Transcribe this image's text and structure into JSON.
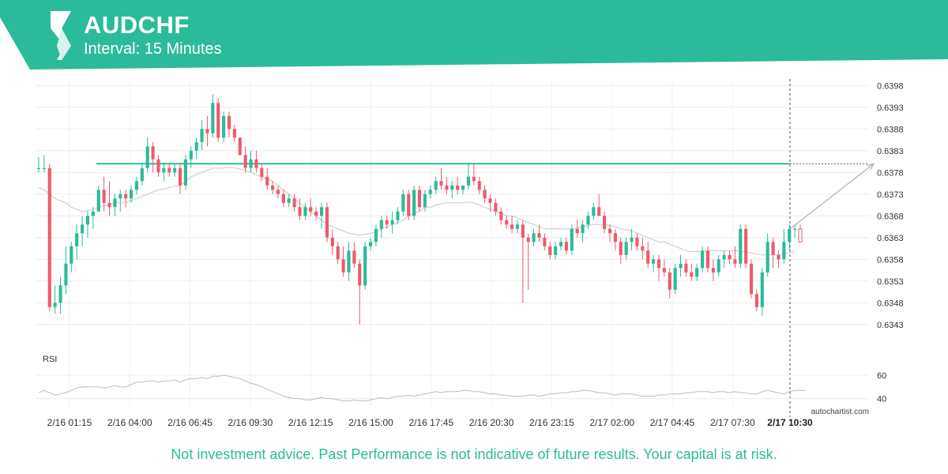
{
  "header": {
    "symbol": "AUDCHF",
    "interval_label": "Interval: 15 Minutes",
    "brand_color": "#2bbb9a",
    "logo_icon": "autochartist-logo-icon"
  },
  "disclaimer": "Not investment advice. Past Performance is not indicative of future results. Your capital is at risk.",
  "watermark": "autochartist.com",
  "chart_data": {
    "type": "candlestick",
    "instrument": "AUDCHF",
    "interval": "15 Minutes",
    "x_tick_labels": [
      "2/16 01:15",
      "2/16 04:00",
      "2/16 06:45",
      "2/16 09:30",
      "2/16 12:15",
      "2/16 15:00",
      "2/16 17:45",
      "2/16 20:30",
      "2/16 23:15",
      "2/17 02:00",
      "2/17 04:45",
      "2/17 07:30",
      "2/17 10:30"
    ],
    "highlighted_x_label": "2/17 10:30",
    "y_tick_labels": [
      "0.6398",
      "0.6393",
      "0.6388",
      "0.6383",
      "0.6378",
      "0.6373",
      "0.6368",
      "0.6363",
      "0.6358",
      "0.6353",
      "0.6348",
      "0.6343"
    ],
    "ylim": [
      0.63395,
      0.63995
    ],
    "grid": true,
    "up_color": "#2bbb9a",
    "down_color": "#f0596c",
    "candles_ohlc": [
      [
        0.6379,
        0.63815,
        0.6378,
        0.6379
      ],
      [
        0.6379,
        0.6382,
        0.6378,
        0.6379
      ],
      [
        0.6379,
        0.638,
        0.6346,
        0.6347
      ],
      [
        0.6347,
        0.6352,
        0.63455,
        0.6348
      ],
      [
        0.6348,
        0.6354,
        0.63455,
        0.6352
      ],
      [
        0.6352,
        0.6361,
        0.635,
        0.6357
      ],
      [
        0.6357,
        0.6362,
        0.6355,
        0.6361
      ],
      [
        0.6361,
        0.6366,
        0.6358,
        0.6364
      ],
      [
        0.6364,
        0.6368,
        0.6361,
        0.6366
      ],
      [
        0.6366,
        0.6369,
        0.6363,
        0.6368
      ],
      [
        0.6368,
        0.637,
        0.6365,
        0.6369
      ],
      [
        0.6369,
        0.6375,
        0.6369,
        0.6374
      ],
      [
        0.6374,
        0.6377,
        0.6369,
        0.6371
      ],
      [
        0.6371,
        0.6376,
        0.6368,
        0.637
      ],
      [
        0.637,
        0.6373,
        0.6368,
        0.6372
      ],
      [
        0.6372,
        0.6374,
        0.6369,
        0.6373
      ],
      [
        0.6373,
        0.6374,
        0.637,
        0.6372
      ],
      [
        0.6372,
        0.6375,
        0.6371,
        0.6374
      ],
      [
        0.6374,
        0.6377,
        0.6373,
        0.6376
      ],
      [
        0.6376,
        0.638,
        0.6375,
        0.6379
      ],
      [
        0.6379,
        0.6386,
        0.6378,
        0.6384
      ],
      [
        0.6384,
        0.6385,
        0.6378,
        0.6381
      ],
      [
        0.6381,
        0.6382,
        0.6377,
        0.6378
      ],
      [
        0.6378,
        0.638,
        0.6376,
        0.6379
      ],
      [
        0.6379,
        0.638,
        0.6377,
        0.6378
      ],
      [
        0.6378,
        0.638,
        0.6377,
        0.6379
      ],
      [
        0.6379,
        0.638,
        0.6373,
        0.6375
      ],
      [
        0.6375,
        0.6382,
        0.6374,
        0.6381
      ],
      [
        0.6381,
        0.6384,
        0.6379,
        0.6383
      ],
      [
        0.6383,
        0.6386,
        0.6381,
        0.6385
      ],
      [
        0.6385,
        0.639,
        0.6383,
        0.6388
      ],
      [
        0.6388,
        0.6391,
        0.6384,
        0.6387
      ],
      [
        0.6387,
        0.6396,
        0.6386,
        0.6394
      ],
      [
        0.6394,
        0.6395,
        0.6385,
        0.6386
      ],
      [
        0.6386,
        0.6392,
        0.6385,
        0.6391
      ],
      [
        0.6391,
        0.6392,
        0.6386,
        0.6388
      ],
      [
        0.6388,
        0.6389,
        0.6385,
        0.6386
      ],
      [
        0.6386,
        0.6386,
        0.6382,
        0.6382
      ],
      [
        0.6382,
        0.6384,
        0.6378,
        0.6379
      ],
      [
        0.6379,
        0.6383,
        0.6378,
        0.6381
      ],
      [
        0.6381,
        0.6383,
        0.6378,
        0.6379
      ],
      [
        0.6379,
        0.638,
        0.6376,
        0.6377
      ],
      [
        0.6377,
        0.6379,
        0.6374,
        0.6375
      ],
      [
        0.6375,
        0.6376,
        0.6373,
        0.6374
      ],
      [
        0.6374,
        0.6375,
        0.6372,
        0.6373
      ],
      [
        0.6373,
        0.6374,
        0.637,
        0.6371
      ],
      [
        0.6371,
        0.6373,
        0.637,
        0.6372
      ],
      [
        0.6372,
        0.6373,
        0.6369,
        0.637
      ],
      [
        0.637,
        0.6372,
        0.6367,
        0.6368
      ],
      [
        0.6368,
        0.6371,
        0.6367,
        0.637
      ],
      [
        0.637,
        0.6372,
        0.6368,
        0.6369
      ],
      [
        0.6369,
        0.637,
        0.6367,
        0.6368
      ],
      [
        0.6368,
        0.6371,
        0.6365,
        0.637
      ],
      [
        0.637,
        0.6371,
        0.6362,
        0.6363
      ],
      [
        0.6363,
        0.6365,
        0.6359,
        0.6361
      ],
      [
        0.6361,
        0.6362,
        0.6357,
        0.6358
      ],
      [
        0.6358,
        0.6361,
        0.6354,
        0.6355
      ],
      [
        0.6355,
        0.6362,
        0.6353,
        0.636
      ],
      [
        0.636,
        0.6362,
        0.6356,
        0.6357
      ],
      [
        0.6357,
        0.6358,
        0.6343,
        0.6352
      ],
      [
        0.6352,
        0.6362,
        0.6351,
        0.6361
      ],
      [
        0.6361,
        0.6363,
        0.636,
        0.6362
      ],
      [
        0.6362,
        0.6366,
        0.6361,
        0.6365
      ],
      [
        0.6365,
        0.6368,
        0.6363,
        0.6367
      ],
      [
        0.6367,
        0.6368,
        0.6365,
        0.6366
      ],
      [
        0.6366,
        0.6369,
        0.6364,
        0.6367
      ],
      [
        0.6367,
        0.637,
        0.6366,
        0.6369
      ],
      [
        0.6369,
        0.6374,
        0.6368,
        0.6373
      ],
      [
        0.6373,
        0.6374,
        0.6367,
        0.6368
      ],
      [
        0.6368,
        0.6375,
        0.6367,
        0.6374
      ],
      [
        0.6374,
        0.6375,
        0.6369,
        0.637
      ],
      [
        0.637,
        0.6374,
        0.6369,
        0.6373
      ],
      [
        0.6373,
        0.6375,
        0.6372,
        0.6374
      ],
      [
        0.6374,
        0.6377,
        0.6373,
        0.6376
      ],
      [
        0.6376,
        0.6379,
        0.6374,
        0.6375
      ],
      [
        0.6375,
        0.6377,
        0.6373,
        0.6374
      ],
      [
        0.6374,
        0.6376,
        0.6372,
        0.6375
      ],
      [
        0.6375,
        0.6377,
        0.6373,
        0.6374
      ],
      [
        0.6374,
        0.6375,
        0.6373,
        0.6375
      ],
      [
        0.6375,
        0.638,
        0.6374,
        0.6377
      ],
      [
        0.6377,
        0.638,
        0.6375,
        0.6376
      ],
      [
        0.6376,
        0.6377,
        0.6373,
        0.6374
      ],
      [
        0.6374,
        0.6375,
        0.6371,
        0.6372
      ],
      [
        0.6372,
        0.6373,
        0.6369,
        0.6371
      ],
      [
        0.6371,
        0.6372,
        0.6368,
        0.6369
      ],
      [
        0.6369,
        0.637,
        0.6366,
        0.6367
      ],
      [
        0.6367,
        0.6368,
        0.6365,
        0.6366
      ],
      [
        0.6366,
        0.6368,
        0.6364,
        0.6365
      ],
      [
        0.6365,
        0.6367,
        0.6364,
        0.6366
      ],
      [
        0.6366,
        0.6367,
        0.6348,
        0.6363
      ],
      [
        0.6363,
        0.6364,
        0.6351,
        0.6362
      ],
      [
        0.6362,
        0.6365,
        0.6361,
        0.6364
      ],
      [
        0.6364,
        0.6366,
        0.6362,
        0.6363
      ],
      [
        0.6363,
        0.6364,
        0.636,
        0.6361
      ],
      [
        0.6361,
        0.6362,
        0.6358,
        0.6359
      ],
      [
        0.6359,
        0.6362,
        0.6358,
        0.6361
      ],
      [
        0.6361,
        0.6363,
        0.636,
        0.6362
      ],
      [
        0.6362,
        0.6363,
        0.6359,
        0.636
      ],
      [
        0.636,
        0.6366,
        0.6359,
        0.6365
      ],
      [
        0.6365,
        0.6367,
        0.6363,
        0.6364
      ],
      [
        0.6364,
        0.6367,
        0.6362,
        0.6366
      ],
      [
        0.6366,
        0.6369,
        0.6365,
        0.6368
      ],
      [
        0.6368,
        0.6371,
        0.6367,
        0.637
      ],
      [
        0.637,
        0.6373,
        0.6369,
        0.6368
      ],
      [
        0.6368,
        0.6369,
        0.6364,
        0.6365
      ],
      [
        0.6365,
        0.6366,
        0.6362,
        0.6364
      ],
      [
        0.6364,
        0.6365,
        0.636,
        0.6362
      ],
      [
        0.6362,
        0.6363,
        0.6357,
        0.6359
      ],
      [
        0.6359,
        0.6363,
        0.6358,
        0.6362
      ],
      [
        0.6362,
        0.6365,
        0.636,
        0.6363
      ],
      [
        0.6363,
        0.6364,
        0.636,
        0.6361
      ],
      [
        0.6361,
        0.6363,
        0.6358,
        0.636
      ],
      [
        0.636,
        0.6362,
        0.6356,
        0.6357
      ],
      [
        0.6357,
        0.6359,
        0.6355,
        0.6358
      ],
      [
        0.6358,
        0.6359,
        0.6353,
        0.6356
      ],
      [
        0.6356,
        0.6358,
        0.6354,
        0.6355
      ],
      [
        0.6355,
        0.6356,
        0.6349,
        0.6351
      ],
      [
        0.6351,
        0.6357,
        0.635,
        0.6356
      ],
      [
        0.6356,
        0.6359,
        0.6354,
        0.6357
      ],
      [
        0.6357,
        0.6358,
        0.6354,
        0.6355
      ],
      [
        0.6355,
        0.6357,
        0.6353,
        0.6354
      ],
      [
        0.6354,
        0.6357,
        0.6353,
        0.6356
      ],
      [
        0.6356,
        0.6361,
        0.6355,
        0.636
      ],
      [
        0.636,
        0.6361,
        0.6355,
        0.6356
      ],
      [
        0.6356,
        0.6358,
        0.6353,
        0.6355
      ],
      [
        0.6355,
        0.6359,
        0.6354,
        0.6358
      ],
      [
        0.6358,
        0.636,
        0.6356,
        0.6359
      ],
      [
        0.6359,
        0.636,
        0.6357,
        0.6358
      ],
      [
        0.6358,
        0.6361,
        0.6356,
        0.6357
      ],
      [
        0.6357,
        0.6366,
        0.6356,
        0.6365
      ],
      [
        0.6365,
        0.6366,
        0.6356,
        0.6357
      ],
      [
        0.6357,
        0.6358,
        0.6349,
        0.635
      ],
      [
        0.635,
        0.6351,
        0.6346,
        0.6347
      ],
      [
        0.6347,
        0.6356,
        0.6345,
        0.6355
      ],
      [
        0.6355,
        0.6364,
        0.6354,
        0.6362
      ],
      [
        0.6362,
        0.6363,
        0.6356,
        0.6359
      ],
      [
        0.6359,
        0.636,
        0.6356,
        0.6358
      ],
      [
        0.6358,
        0.6365,
        0.6357,
        0.6362
      ],
      [
        0.6362,
        0.6366,
        0.636,
        0.6365
      ],
      [
        0.6365,
        0.6366,
        0.6363,
        0.6365
      ],
      [
        0.6365,
        0.6366,
        0.6362,
        0.6362
      ]
    ],
    "moving_average": [
      0.63745,
      0.6374,
      0.6373,
      0.6372,
      0.63715,
      0.6371,
      0.637,
      0.63695,
      0.6369,
      0.63692,
      0.63695,
      0.637,
      0.63702,
      0.63705,
      0.6371,
      0.6371,
      0.63712,
      0.63715,
      0.6372,
      0.63725,
      0.6373,
      0.63735,
      0.6374,
      0.63742,
      0.63745,
      0.63748,
      0.6375,
      0.6376,
      0.6377,
      0.63775,
      0.6378,
      0.63785,
      0.6379,
      0.6379,
      0.6379,
      0.63792,
      0.6379,
      0.63788,
      0.63785,
      0.6378,
      0.63775,
      0.6377,
      0.63765,
      0.6376,
      0.6375,
      0.6374,
      0.6373,
      0.6372,
      0.6371,
      0.637,
      0.6369,
      0.6368,
      0.6367,
      0.6366,
      0.63655,
      0.6365,
      0.63645,
      0.6364,
      0.63638,
      0.63635,
      0.63638,
      0.6364,
      0.63642,
      0.6365,
      0.63655,
      0.6366,
      0.63665,
      0.6367,
      0.6368,
      0.63685,
      0.6369,
      0.637,
      0.637,
      0.63705,
      0.63708,
      0.6371,
      0.6371,
      0.6371,
      0.6371,
      0.63712,
      0.6371,
      0.63705,
      0.637,
      0.63695,
      0.6369,
      0.63685,
      0.6368,
      0.6368,
      0.63675,
      0.6367,
      0.63665,
      0.6366,
      0.63655,
      0.6365,
      0.6365,
      0.6365,
      0.6365,
      0.6365,
      0.6365,
      0.63652,
      0.63655,
      0.63658,
      0.6366,
      0.6366,
      0.6366,
      0.63658,
      0.63655,
      0.6365,
      0.63648,
      0.63645,
      0.6364,
      0.63635,
      0.6363,
      0.63625,
      0.6362,
      0.6362,
      0.63615,
      0.6361,
      0.63605,
      0.636,
      0.63598,
      0.63598,
      0.63598,
      0.636,
      0.636,
      0.636,
      0.636,
      0.636,
      0.636,
      0.63598,
      0.63598,
      0.63595,
      0.63592,
      0.6359,
      0.6359,
      0.6359,
      0.6359,
      0.63592,
      0.63595,
      0.63598
    ],
    "resistance_level": 0.638,
    "forecast_target": 0.638,
    "rsi_panel": {
      "label": "RSI",
      "y_tick_labels": [
        "60",
        "40"
      ],
      "ylim": [
        35,
        70
      ],
      "values": [
        45,
        47,
        45,
        43,
        44,
        45,
        47,
        49,
        50,
        50,
        50,
        50,
        49,
        50,
        51,
        50,
        50,
        52,
        54,
        54,
        55,
        55,
        54,
        55,
        55,
        56,
        54,
        56,
        57,
        57,
        58,
        57,
        59,
        59,
        60,
        59,
        58,
        57,
        55,
        53,
        52,
        50,
        48,
        46,
        44,
        42,
        41,
        40,
        40,
        39,
        39,
        40,
        41,
        40,
        40,
        39,
        38,
        38,
        39,
        38,
        38,
        39,
        40,
        41,
        40,
        41,
        42,
        42,
        43,
        42,
        43,
        44,
        45,
        46,
        45,
        46,
        46,
        46,
        47,
        47,
        46,
        46,
        45,
        44,
        44,
        43,
        43,
        42,
        42,
        42,
        43,
        43,
        42,
        43,
        44,
        44,
        45,
        45,
        46,
        46,
        47,
        47,
        46,
        45,
        45,
        44,
        43,
        44,
        44,
        44,
        43,
        42,
        42,
        42,
        43,
        43,
        44,
        44,
        44,
        45,
        45,
        46,
        46,
        46,
        45,
        46,
        46,
        45,
        46,
        45,
        45,
        44,
        44,
        46,
        47,
        46,
        45,
        44,
        46,
        47,
        47,
        47
      ]
    }
  }
}
